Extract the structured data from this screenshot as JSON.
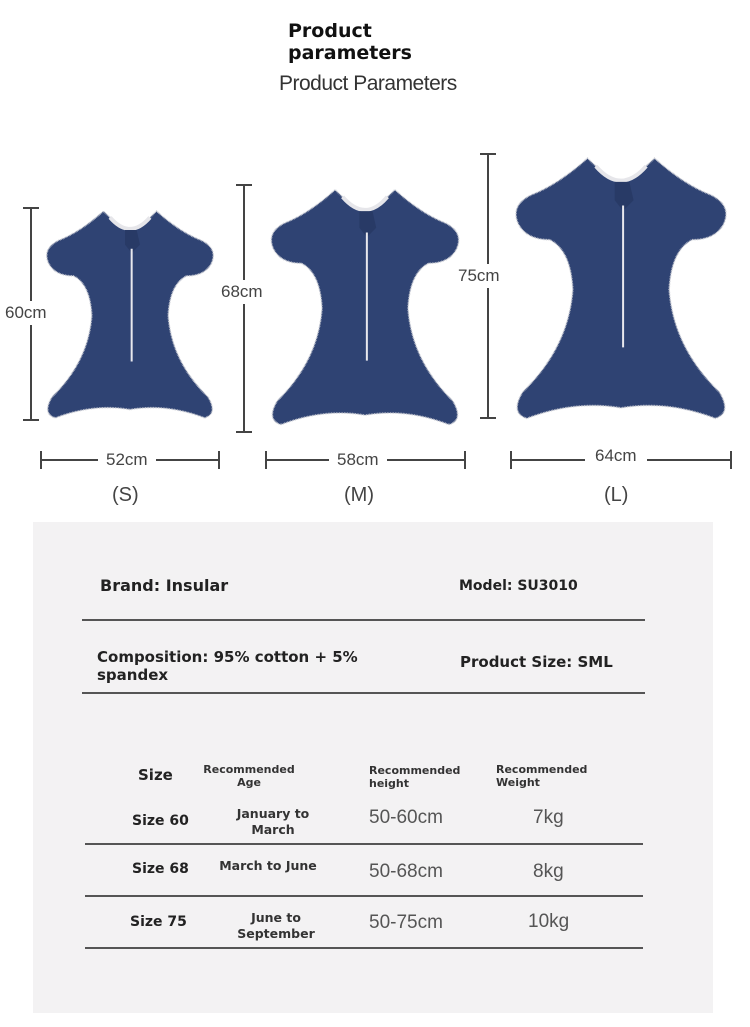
{
  "header": {
    "title": "Product parameters",
    "subtitle": "Product Parameters"
  },
  "garment_color": "#2f4373",
  "sizes": [
    {
      "label": "(S)",
      "height": "60cm",
      "width": "52cm"
    },
    {
      "label": "(M)",
      "height": "68cm",
      "width": "58cm"
    },
    {
      "label": "(L)",
      "height": "75cm",
      "width": "64cm"
    }
  ],
  "specs": {
    "brand": "Brand: Insular",
    "model": "Model: SU3010",
    "composition": "Composition: 95% cotton + 5% spandex",
    "product_size": "Product Size: SML"
  },
  "table": {
    "headers": [
      "Size",
      "Recommended Age",
      "Recommended height",
      "Recommended Weight"
    ],
    "rows": [
      {
        "size": "Size 60",
        "age": "January to March",
        "height": "50-60cm",
        "weight": "7kg"
      },
      {
        "size": "Size 68",
        "age": "March to June",
        "height": "50-68cm",
        "weight": "8kg"
      },
      {
        "size": "Size 75",
        "age": "June to September",
        "height": "50-75cm",
        "weight": "10kg"
      }
    ]
  }
}
